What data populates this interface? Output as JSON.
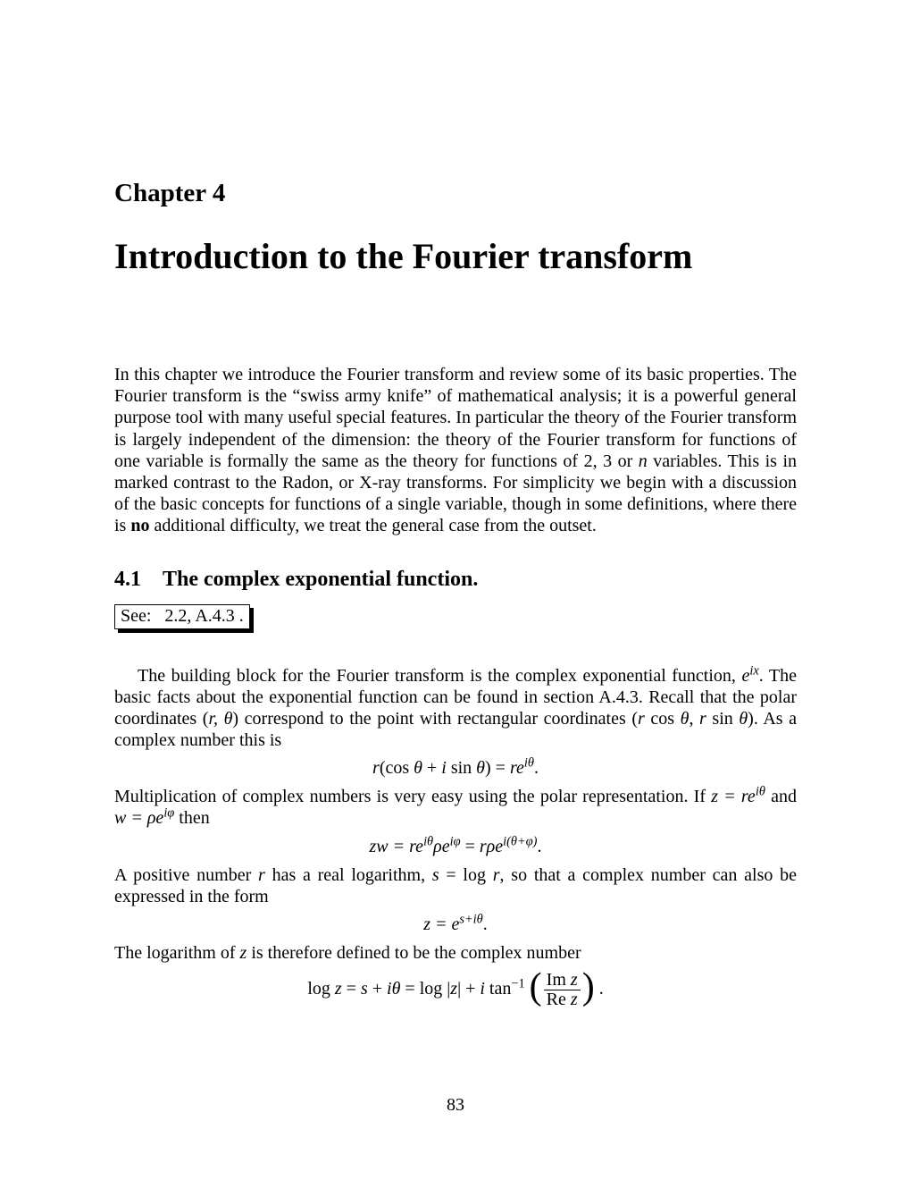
{
  "chapter": {
    "label": "Chapter 4",
    "title": "Introduction to the Fourier transform"
  },
  "section": {
    "number": "4.1",
    "title": "The complex exponential function."
  },
  "see_box": "See:   2.2, A.4.3 .",
  "page_number": "83",
  "colors": {
    "text": "#000000",
    "background": "#ffffff"
  },
  "fonts": {
    "chapter_label_size": 29,
    "chapter_title_size": 40,
    "section_heading_size": 24,
    "body_size": 20
  },
  "math": {
    "eix": "e",
    "eix_sup": "ix",
    "rtheta": "(r, θ)",
    "rcos_rsin": "(r cos θ, r sin θ)",
    "eq1_lhs": "r(cos θ + i sin θ) = re",
    "eq1_sup": "iθ",
    "eq1_end": ".",
    "z_eq": "z = re",
    "z_sup": "iθ",
    "w_eq": "w = ρe",
    "w_sup": "iφ",
    "eq2_a": "zw = re",
    "eq2_a_sup": "iθ",
    "eq2_b": "ρe",
    "eq2_b_sup": "iφ",
    "eq2_c": " = rρe",
    "eq2_c_sup": "i(θ+φ)",
    "eq2_end": ".",
    "r_var": "r",
    "s_eq": "s = log r",
    "eq3_a": "z = e",
    "eq3_sup": "s+iθ",
    "eq3_end": ".",
    "z_var": "z",
    "eq4_lhs": "log z = s + iθ = log |z| + i tan",
    "eq4_sup": "−1",
    "eq4_num": "Im z",
    "eq4_den": "Re z",
    "eq4_end": "."
  },
  "text": {
    "intro_a": "In this chapter we introduce the Fourier transform and review some of its basic properties. The Fourier transform is the “swiss army knife” of mathematical analysis; it is a powerful general purpose tool with many useful special features. In particular the theory of the Fourier transform is largely independent of the dimension: the theory of the Fourier transform for functions of one variable is formally the same as the theory for functions of 2, 3 or ",
    "intro_n": "n",
    "intro_b": " variables. This is in marked contrast to the Radon, or X-ray transforms. For simplicity we begin with a discussion of the basic concepts for functions of a single variable, though in some definitions, where there is ",
    "intro_bold": "no",
    "intro_c": " additional difficulty, we treat the general case from the outset.",
    "p1_a": "The building block for the Fourier transform is the complex exponential function, ",
    "p1_b": ". The basic facts about the exponential function can be found in section A.4.3. Recall that the polar coordinates ",
    "p1_c": " correspond to the point with rectangular coordinates ",
    "p1_d": ". As a complex number this is",
    "p2_a": "Multiplication of complex numbers is very easy using the polar representation. If ",
    "p2_b": " and ",
    "p2_c": " then",
    "p3_a": "A positive number ",
    "p3_b": " has a real logarithm, ",
    "p3_c": ", so that a complex number can also be expressed in the form",
    "p4_a": "The logarithm of ",
    "p4_b": " is therefore defined to be the complex number"
  }
}
